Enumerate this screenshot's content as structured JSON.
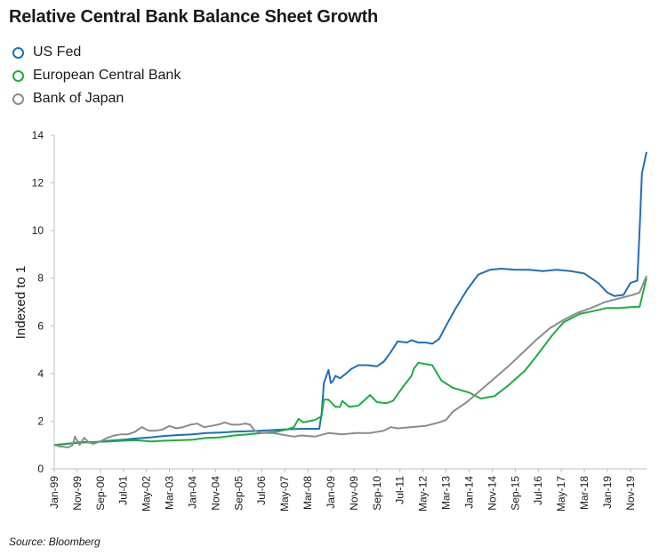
{
  "chart_data": {
    "type": "line",
    "title": "Relative Central Bank Balance Sheet Growth",
    "xlabel": "",
    "ylabel": "Indexed to 1",
    "ylim": [
      0,
      14
    ],
    "yticks": [
      0,
      2,
      4,
      6,
      8,
      10,
      12,
      14
    ],
    "xlim": [
      "1999-01",
      "2020-06"
    ],
    "xticks": [
      "Jan-99",
      "Nov-99",
      "Sep-00",
      "Jul-01",
      "May-02",
      "Mar-03",
      "Jan-04",
      "Nov-04",
      "Sep-05",
      "Jul-06",
      "May-07",
      "Mar-08",
      "Jan-09",
      "Nov-09",
      "Sep-10",
      "Jul-11",
      "May-12",
      "Mar-13",
      "Jan-14",
      "Nov-14",
      "Sep-15",
      "Jul-16",
      "May-17",
      "Mar-18",
      "Jan-19",
      "Nov-19"
    ],
    "grid": false,
    "legend": "top-left",
    "source": "Source: Bloomberg",
    "series": [
      {
        "name": "US Fed",
        "color": "#1f6fb7",
        "points": [
          [
            "1999-01",
            1.0
          ],
          [
            "1999-07",
            1.05
          ],
          [
            "1999-12",
            1.12
          ],
          [
            "2000-06",
            1.12
          ],
          [
            "2001-01",
            1.18
          ],
          [
            "2001-07",
            1.22
          ],
          [
            "2002-01",
            1.28
          ],
          [
            "2002-07",
            1.32
          ],
          [
            "2003-01",
            1.38
          ],
          [
            "2003-07",
            1.42
          ],
          [
            "2004-01",
            1.45
          ],
          [
            "2004-07",
            1.5
          ],
          [
            "2005-01",
            1.52
          ],
          [
            "2005-07",
            1.56
          ],
          [
            "2006-01",
            1.58
          ],
          [
            "2006-07",
            1.6
          ],
          [
            "2007-01",
            1.63
          ],
          [
            "2007-07",
            1.66
          ],
          [
            "2008-01",
            1.68
          ],
          [
            "2008-08",
            1.68
          ],
          [
            "2008-09",
            2.3
          ],
          [
            "2008-10",
            3.6
          ],
          [
            "2008-12",
            4.15
          ],
          [
            "2009-01",
            3.6
          ],
          [
            "2009-02",
            3.7
          ],
          [
            "2009-03",
            3.9
          ],
          [
            "2009-05",
            3.8
          ],
          [
            "2009-07",
            3.95
          ],
          [
            "2009-10",
            4.2
          ],
          [
            "2010-01",
            4.35
          ],
          [
            "2010-05",
            4.35
          ],
          [
            "2010-09",
            4.3
          ],
          [
            "2010-12",
            4.5
          ],
          [
            "2011-03",
            4.9
          ],
          [
            "2011-06",
            5.35
          ],
          [
            "2011-10",
            5.3
          ],
          [
            "2011-12",
            5.4
          ],
          [
            "2012-03",
            5.3
          ],
          [
            "2012-06",
            5.3
          ],
          [
            "2012-09",
            5.25
          ],
          [
            "2012-12",
            5.45
          ],
          [
            "2013-03",
            6.0
          ],
          [
            "2013-07",
            6.7
          ],
          [
            "2013-12",
            7.5
          ],
          [
            "2014-05",
            8.15
          ],
          [
            "2014-10",
            8.35
          ],
          [
            "2015-03",
            8.4
          ],
          [
            "2015-09",
            8.35
          ],
          [
            "2016-03",
            8.35
          ],
          [
            "2016-09",
            8.3
          ],
          [
            "2017-03",
            8.35
          ],
          [
            "2017-09",
            8.3
          ],
          [
            "2018-03",
            8.2
          ],
          [
            "2018-09",
            7.8
          ],
          [
            "2019-01",
            7.4
          ],
          [
            "2019-04",
            7.25
          ],
          [
            "2019-08",
            7.3
          ],
          [
            "2019-11",
            7.8
          ],
          [
            "2020-02",
            7.9
          ],
          [
            "2020-03",
            10.0
          ],
          [
            "2020-04",
            12.4
          ],
          [
            "2020-06",
            13.3
          ]
        ]
      },
      {
        "name": "European Central Bank",
        "color": "#1fab42",
        "points": [
          [
            "1999-01",
            1.0
          ],
          [
            "1999-06",
            1.05
          ],
          [
            "2000-01",
            1.1
          ],
          [
            "2000-06",
            1.12
          ],
          [
            "2001-01",
            1.15
          ],
          [
            "2001-07",
            1.18
          ],
          [
            "2002-01",
            1.2
          ],
          [
            "2002-07",
            1.15
          ],
          [
            "2003-01",
            1.18
          ],
          [
            "2003-07",
            1.2
          ],
          [
            "2004-01",
            1.22
          ],
          [
            "2004-07",
            1.3
          ],
          [
            "2005-01",
            1.32
          ],
          [
            "2005-07",
            1.4
          ],
          [
            "2006-01",
            1.45
          ],
          [
            "2006-07",
            1.5
          ],
          [
            "2007-01",
            1.55
          ],
          [
            "2007-06",
            1.65
          ],
          [
            "2007-09",
            1.75
          ],
          [
            "2007-11",
            2.1
          ],
          [
            "2008-01",
            1.95
          ],
          [
            "2008-06",
            2.05
          ],
          [
            "2008-09",
            2.2
          ],
          [
            "2008-10",
            2.9
          ],
          [
            "2008-12",
            2.9
          ],
          [
            "2009-03",
            2.6
          ],
          [
            "2009-05",
            2.6
          ],
          [
            "2009-06",
            2.85
          ],
          [
            "2009-09",
            2.6
          ],
          [
            "2010-01",
            2.65
          ],
          [
            "2010-05",
            3.0
          ],
          [
            "2010-06",
            3.1
          ],
          [
            "2010-09",
            2.8
          ],
          [
            "2011-01",
            2.75
          ],
          [
            "2011-04",
            2.85
          ],
          [
            "2011-08",
            3.4
          ],
          [
            "2011-12",
            3.9
          ],
          [
            "2012-01",
            4.2
          ],
          [
            "2012-03",
            4.45
          ],
          [
            "2012-09",
            4.35
          ],
          [
            "2013-01",
            3.7
          ],
          [
            "2013-06",
            3.4
          ],
          [
            "2014-01",
            3.2
          ],
          [
            "2014-06",
            2.95
          ],
          [
            "2014-12",
            3.05
          ],
          [
            "2015-06",
            3.5
          ],
          [
            "2016-01",
            4.1
          ],
          [
            "2016-06",
            4.7
          ],
          [
            "2017-01",
            5.6
          ],
          [
            "2017-06",
            6.15
          ],
          [
            "2018-01",
            6.5
          ],
          [
            "2018-06",
            6.6
          ],
          [
            "2019-01",
            6.75
          ],
          [
            "2019-06",
            6.75
          ],
          [
            "2020-01",
            6.8
          ],
          [
            "2020-03",
            6.8
          ],
          [
            "2020-06",
            8.0
          ]
        ]
      },
      {
        "name": "Bank of Japan",
        "color": "#8c8c8c",
        "points": [
          [
            "1999-01",
            1.0
          ],
          [
            "1999-03",
            0.95
          ],
          [
            "1999-07",
            0.9
          ],
          [
            "1999-09",
            1.0
          ],
          [
            "1999-10",
            1.35
          ],
          [
            "1999-12",
            1.0
          ],
          [
            "2000-02",
            1.3
          ],
          [
            "2000-04",
            1.1
          ],
          [
            "2000-06",
            1.05
          ],
          [
            "2000-09",
            1.15
          ],
          [
            "2000-12",
            1.3
          ],
          [
            "2001-03",
            1.4
          ],
          [
            "2001-06",
            1.45
          ],
          [
            "2001-09",
            1.45
          ],
          [
            "2001-12",
            1.55
          ],
          [
            "2002-03",
            1.75
          ],
          [
            "2002-06",
            1.6
          ],
          [
            "2002-09",
            1.6
          ],
          [
            "2002-12",
            1.65
          ],
          [
            "2003-03",
            1.8
          ],
          [
            "2003-06",
            1.7
          ],
          [
            "2003-09",
            1.75
          ],
          [
            "2003-12",
            1.85
          ],
          [
            "2004-03",
            1.9
          ],
          [
            "2004-06",
            1.75
          ],
          [
            "2004-09",
            1.8
          ],
          [
            "2004-12",
            1.85
          ],
          [
            "2005-03",
            1.95
          ],
          [
            "2005-06",
            1.85
          ],
          [
            "2005-09",
            1.85
          ],
          [
            "2005-12",
            1.9
          ],
          [
            "2006-02",
            1.85
          ],
          [
            "2006-04",
            1.6
          ],
          [
            "2006-07",
            1.5
          ],
          [
            "2006-12",
            1.5
          ],
          [
            "2007-06",
            1.4
          ],
          [
            "2007-09",
            1.35
          ],
          [
            "2007-12",
            1.4
          ],
          [
            "2008-06",
            1.35
          ],
          [
            "2008-12",
            1.5
          ],
          [
            "2009-06",
            1.45
          ],
          [
            "2009-12",
            1.5
          ],
          [
            "2010-06",
            1.5
          ],
          [
            "2010-12",
            1.6
          ],
          [
            "2011-03",
            1.75
          ],
          [
            "2011-06",
            1.7
          ],
          [
            "2011-12",
            1.75
          ],
          [
            "2012-06",
            1.8
          ],
          [
            "2012-12",
            1.95
          ],
          [
            "2013-03",
            2.05
          ],
          [
            "2013-06",
            2.4
          ],
          [
            "2013-12",
            2.8
          ],
          [
            "2014-06",
            3.3
          ],
          [
            "2014-12",
            3.8
          ],
          [
            "2015-06",
            4.3
          ],
          [
            "2015-12",
            4.85
          ],
          [
            "2016-06",
            5.4
          ],
          [
            "2016-12",
            5.9
          ],
          [
            "2017-06",
            6.25
          ],
          [
            "2017-12",
            6.55
          ],
          [
            "2018-06",
            6.75
          ],
          [
            "2018-12",
            7.0
          ],
          [
            "2019-06",
            7.15
          ],
          [
            "2019-12",
            7.3
          ],
          [
            "2020-03",
            7.4
          ],
          [
            "2020-06",
            8.1
          ]
        ]
      }
    ]
  }
}
